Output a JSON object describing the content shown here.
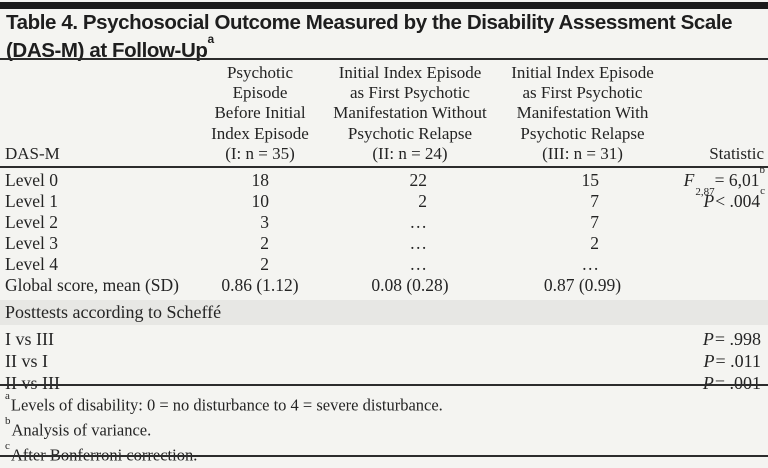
{
  "colors": {
    "page_background": "#f4f4f1",
    "band_background": "#e7e7e4",
    "rule": "#2c2c2c",
    "top_bar": "#1b1b1b",
    "text": "#242424"
  },
  "title": {
    "line1": "Table 4. Psychosocial Outcome Measured by the Disability Assessment Scale",
    "line2": "(DAS-M) at Follow-Up",
    "superscript": "a"
  },
  "header": {
    "col1": "DAS-M",
    "col2_lines": [
      "Psychotic",
      "Episode",
      "Before Initial",
      "Index Episode",
      "(I: n = 35)"
    ],
    "col3_lines": [
      "Initial Index Episode",
      "as First Psychotic",
      "Manifestation Without",
      "Psychotic Relapse",
      "(II: n = 24)"
    ],
    "col4_lines": [
      "Initial Index Episode",
      "as First Psychotic",
      "Manifestation With",
      "Psychotic Relapse",
      "(III: n = 31)"
    ],
    "col5": "Statistic"
  },
  "body_rows": [
    {
      "label": "Level 0",
      "c1": "18",
      "c2": "22",
      "c3": "15"
    },
    {
      "label": "Level 1",
      "c1": "10",
      "c2": "2",
      "c3": "7"
    },
    {
      "label": "Level 2",
      "c1": "3",
      "c2": "…",
      "c3": "7"
    },
    {
      "label": "Level 3",
      "c1": "2",
      "c2": "…",
      "c3": "2"
    },
    {
      "label": "Level 4",
      "c1": "2",
      "c2": "…",
      "c3": "…"
    },
    {
      "label": "Global score, mean (SD)",
      "c1": "0.86 (1.12)",
      "c2": "0.08 (0.28)",
      "c3": "0.87 (0.99)"
    }
  ],
  "statistics": {
    "f": {
      "symbol": "F",
      "subscript": "2,87",
      "value": "= 6,01",
      "superscript": "b"
    },
    "p": {
      "symbol": "P",
      "value": "< .004",
      "superscript": "c"
    }
  },
  "posttests": {
    "section_label": "Posttests according to Scheffé",
    "rows": [
      {
        "label": "I vs III",
        "p_symbol": "P",
        "p_value": "= .998"
      },
      {
        "label": "II vs I",
        "p_symbol": "P",
        "p_value": "= .011"
      },
      {
        "label": "II vs III",
        "p_symbol": "P",
        "p_value": "= .001"
      }
    ]
  },
  "footnotes": [
    {
      "marker": "a",
      "text": "Levels of disability: 0 = no disturbance to 4 = severe disturbance."
    },
    {
      "marker": "b",
      "text": "Analysis of variance."
    },
    {
      "marker": "c",
      "text": "After Bonferroni correction."
    }
  ]
}
